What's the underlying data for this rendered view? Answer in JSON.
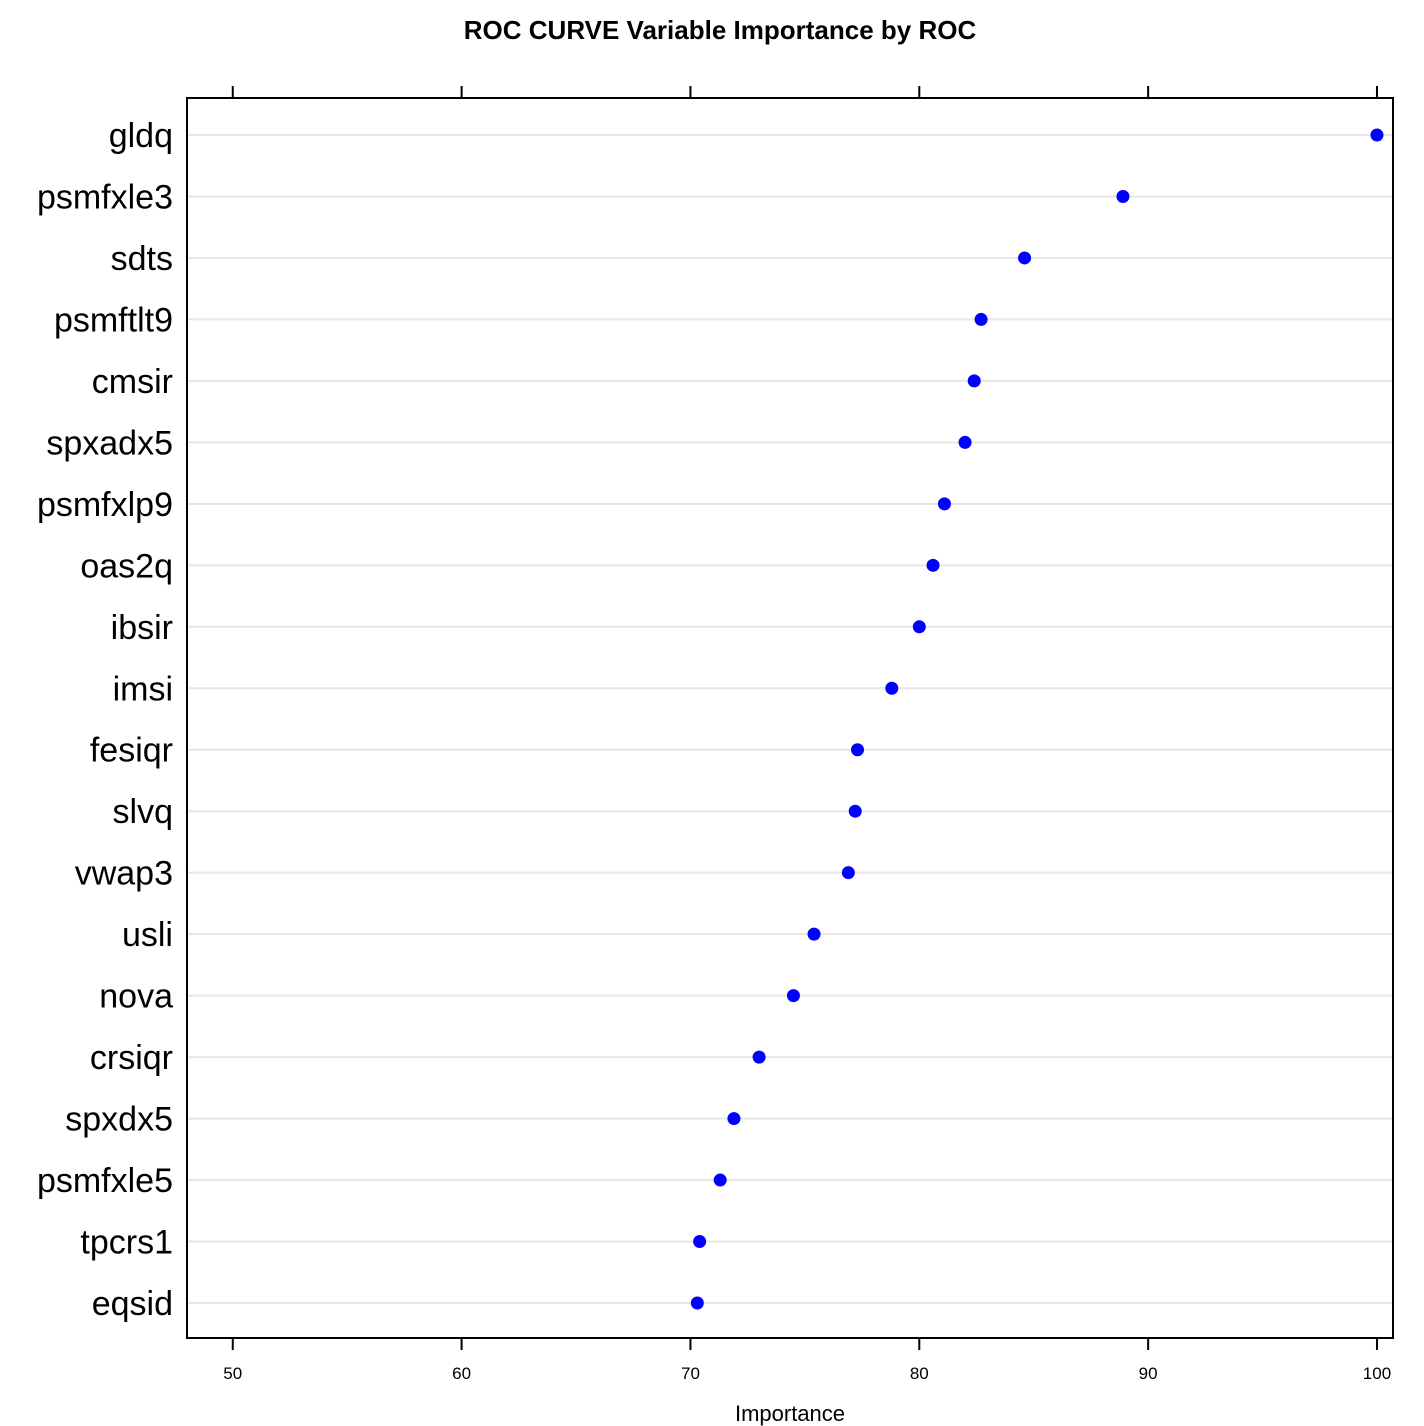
{
  "chart_data": {
    "type": "scatter",
    "title": "ROC CURVE Variable Importance by ROC",
    "xlabel": "Importance",
    "ylabel": "",
    "xlim": [
      48,
      100.7
    ],
    "xticks": [
      50,
      60,
      70,
      80,
      90,
      100
    ],
    "xtick_labels": [
      "50",
      "60",
      "70",
      "80",
      "90",
      "100"
    ],
    "grid": "horizontal",
    "marker_color": "#0000ff",
    "categories": [
      "gldq",
      "psmfxle3",
      "sdts",
      "psmftlt9",
      "cmsir",
      "spxadx5",
      "psmfxlp9",
      "oas2q",
      "ibsir",
      "imsi",
      "fesiqr",
      "slvq",
      "vwap3",
      "usli",
      "nova",
      "crsiqr",
      "spxdx5",
      "psmfxle5",
      "tpcrs1",
      "eqsid"
    ],
    "values": [
      100.0,
      88.9,
      84.6,
      82.7,
      82.4,
      82.0,
      81.1,
      80.6,
      80.0,
      78.8,
      77.3,
      77.2,
      76.9,
      75.4,
      74.5,
      73.0,
      71.9,
      71.3,
      70.4,
      70.3
    ]
  }
}
